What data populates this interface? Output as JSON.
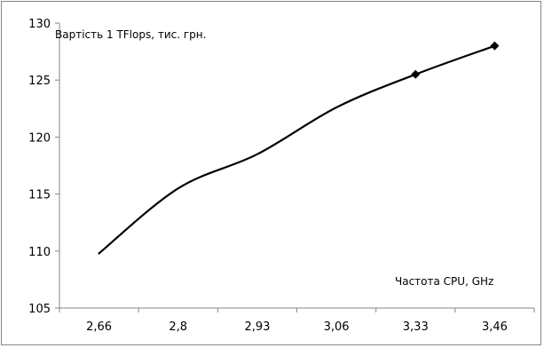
{
  "chart_data": {
    "type": "line",
    "title": "Вартість 1 TFlops, тис. грн.",
    "xlabel": "Частота CPU, GHz",
    "ylabel": "",
    "categories": [
      "2,66",
      "2,8",
      "2,93",
      "3,06",
      "3,33",
      "3,46"
    ],
    "series": [
      {
        "values": [
          109.8,
          115.5,
          118.5,
          122.6,
          125.5,
          128.0
        ],
        "marker_indices": [
          4,
          5
        ],
        "color": "#000000"
      }
    ],
    "ylim": [
      105,
      130
    ],
    "yticks": [
      "105",
      "110",
      "115",
      "120",
      "125",
      "130"
    ],
    "grid": false,
    "legend": "none"
  }
}
